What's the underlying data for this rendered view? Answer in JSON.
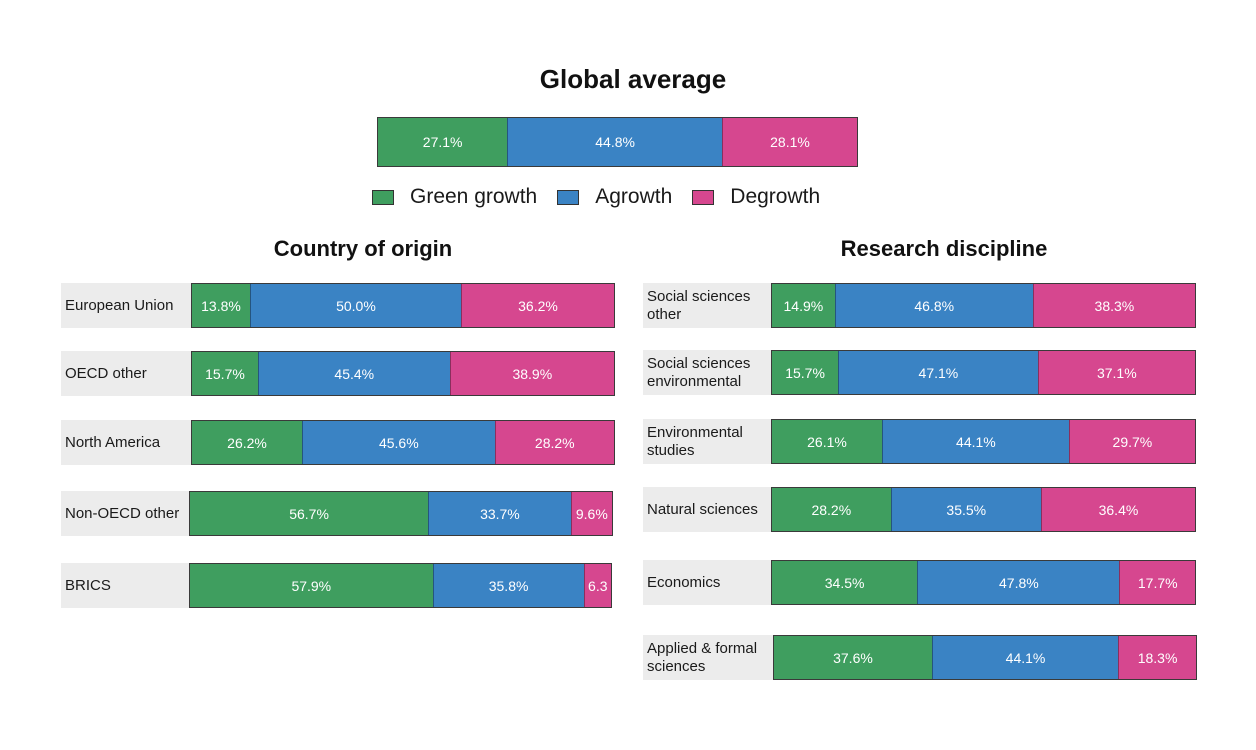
{
  "chart_data": [
    {
      "type": "bar",
      "orientation": "horizontal",
      "stacked": true,
      "title": "Global average",
      "categories": [
        ""
      ],
      "series": [
        {
          "name": "Green growth",
          "values": [
            27.1
          ]
        },
        {
          "name": "Agrowth",
          "values": [
            44.8
          ]
        },
        {
          "name": "Degrowth",
          "values": [
            28.1
          ]
        }
      ],
      "data_labels": [
        [
          "27.1%",
          "44.8%",
          "28.1%"
        ]
      ],
      "legend": "bottom"
    },
    {
      "type": "bar",
      "orientation": "horizontal",
      "stacked": true,
      "title": "Country of origin",
      "categories": [
        "European Union",
        "OECD other",
        "North America",
        "Non-OECD other",
        "BRICS"
      ],
      "series": [
        {
          "name": "Green growth",
          "values": [
            13.8,
            15.7,
            26.2,
            56.7,
            57.9
          ]
        },
        {
          "name": "Agrowth",
          "values": [
            50.0,
            45.4,
            45.6,
            33.7,
            35.8
          ]
        },
        {
          "name": "Degrowth",
          "values": [
            36.2,
            38.9,
            28.2,
            9.6,
            6.3
          ]
        }
      ],
      "data_labels": [
        [
          "13.8%",
          "50.0%",
          "36.2%"
        ],
        [
          "15.7%",
          "45.4%",
          "38.9%"
        ],
        [
          "26.2%",
          "45.6%",
          "28.2%"
        ],
        [
          "56.7%",
          "33.7%",
          "9.6%"
        ],
        [
          "57.9%",
          "35.8%",
          "6.3"
        ]
      ]
    },
    {
      "type": "bar",
      "orientation": "horizontal",
      "stacked": true,
      "title": "Research discipline",
      "categories": [
        "Social sciences\nother",
        "Social sciences\nenvironmental",
        "Environmental\nstudies",
        "Natural sciences",
        "Economics",
        "Applied & formal\nsciences"
      ],
      "series": [
        {
          "name": "Green growth",
          "values": [
            14.9,
            15.7,
            26.1,
            28.2,
            34.5,
            37.6
          ]
        },
        {
          "name": "Agrowth",
          "values": [
            46.8,
            47.1,
            44.1,
            35.5,
            47.8,
            44.1
          ]
        },
        {
          "name": "Degrowth",
          "values": [
            38.3,
            37.1,
            29.7,
            36.4,
            17.7,
            18.3
          ]
        }
      ],
      "data_labels": [
        [
          "14.9%",
          "46.8%",
          "38.3%"
        ],
        [
          "15.7%",
          "47.1%",
          "37.1%"
        ],
        [
          "26.1%",
          "44.1%",
          "29.7%"
        ],
        [
          "28.2%",
          "35.5%",
          "36.4%"
        ],
        [
          "34.5%",
          "47.8%",
          "17.7%"
        ],
        [
          "37.6%",
          "44.1%",
          "18.3%"
        ]
      ]
    }
  ],
  "legend": {
    "items": [
      {
        "name": "Green growth",
        "color": "#3f9e5f"
      },
      {
        "name": "Agrowth",
        "color": "#3a83c4"
      },
      {
        "name": "Degrowth",
        "color": "#d6478f"
      }
    ]
  }
}
